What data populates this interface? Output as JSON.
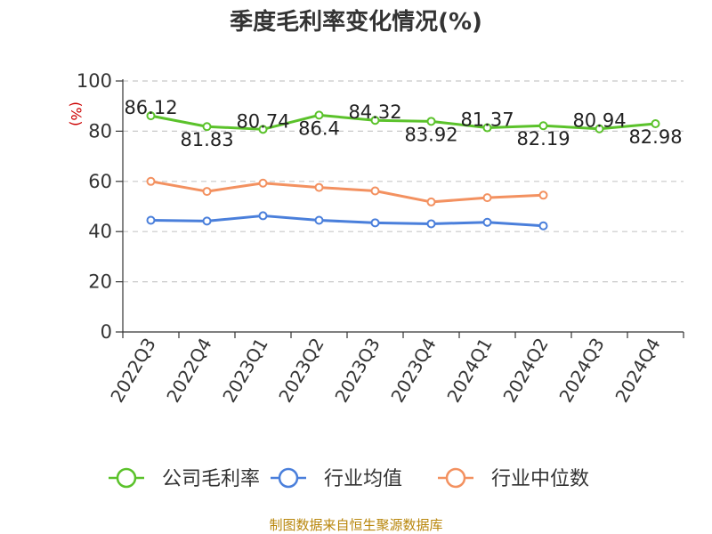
{
  "chart_data": {
    "type": "line",
    "title": "季度毛利率变化情况(%)",
    "ylabel": "(%)",
    "xlabel": "",
    "categories": [
      "2022Q3",
      "2022Q4",
      "2023Q1",
      "2023Q2",
      "2023Q3",
      "2023Q4",
      "2024Q1",
      "2024Q2",
      "2024Q3",
      "2024Q4"
    ],
    "ylim": [
      0,
      100
    ],
    "yticks": [
      0,
      20,
      40,
      60,
      80,
      100
    ],
    "grid": true,
    "legend_position": "bottom",
    "series": [
      {
        "name": "公司毛利率",
        "color": "#5bc22b",
        "values": [
          86.12,
          81.83,
          80.74,
          86.4,
          84.32,
          83.92,
          81.37,
          82.19,
          80.94,
          82.98
        ],
        "labels": [
          "86.12",
          "81.83",
          "80.74",
          "86.4",
          "84.32",
          "83.92",
          "81.37",
          "82.19",
          "80.94",
          "82.98"
        ]
      },
      {
        "name": "行业均值",
        "color": "#4a7fdb",
        "values": [
          44.5,
          44.2,
          46.3,
          44.5,
          43.5,
          43.1,
          43.7,
          42.3,
          null,
          null
        ]
      },
      {
        "name": "行业中位数",
        "color": "#f39160",
        "values": [
          60.0,
          56.0,
          59.3,
          57.6,
          56.2,
          51.8,
          53.5,
          54.5,
          null,
          null
        ]
      }
    ]
  },
  "footer": {
    "source": "制图数据来自恒生聚源数据库"
  }
}
